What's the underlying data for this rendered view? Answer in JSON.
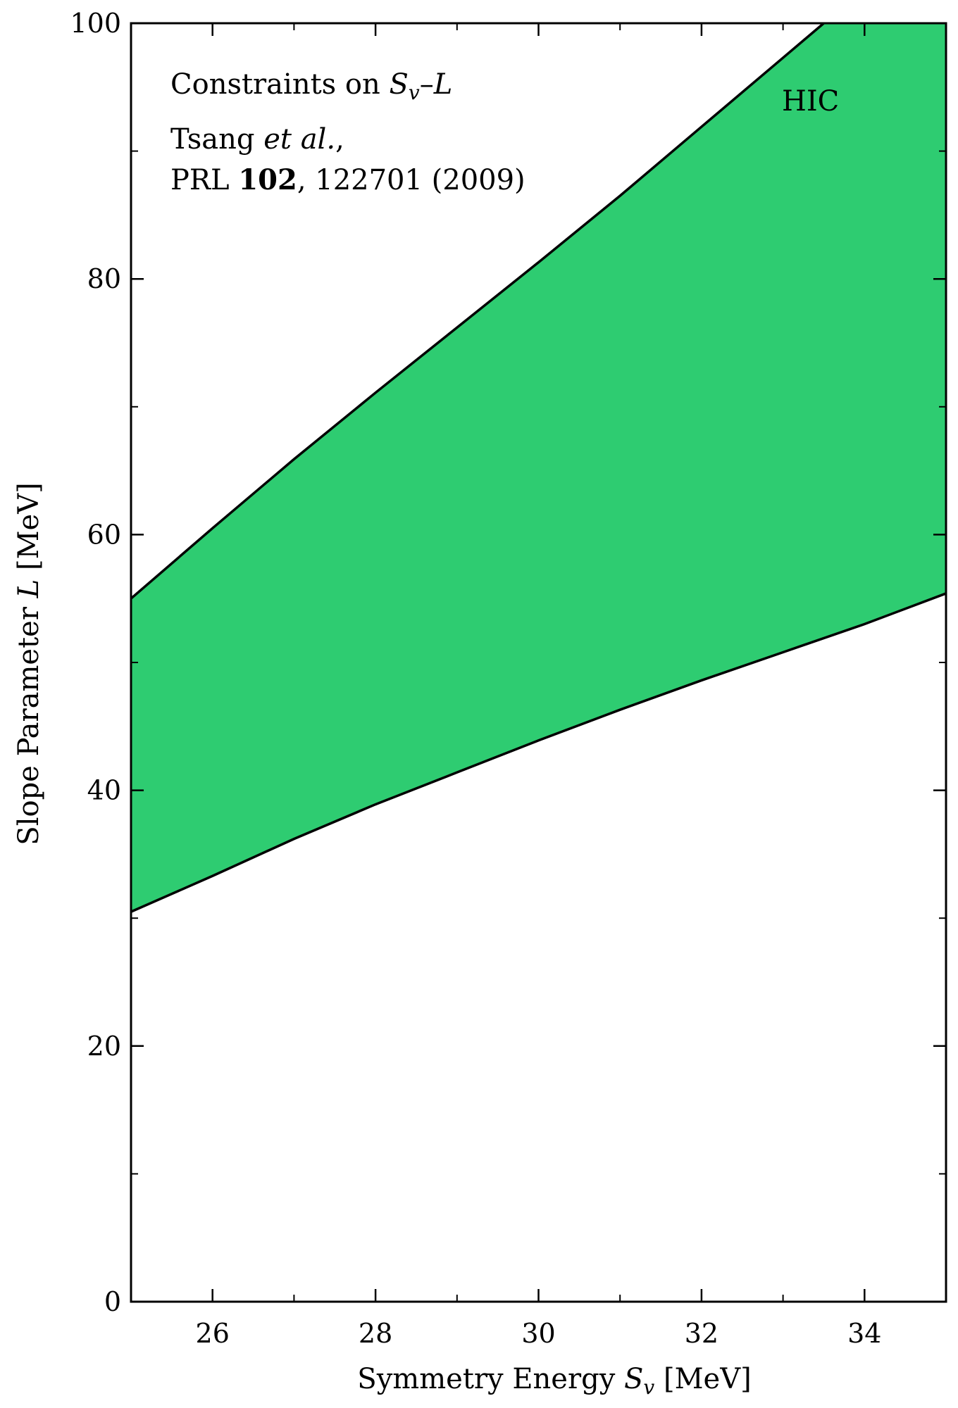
{
  "chart_data": {
    "type": "area",
    "xlabel": {
      "prefix": "Symmetry Energy ",
      "symbol": "S",
      "sub": "v",
      "suffix": " [MeV]"
    },
    "ylabel": {
      "prefix": "Slope Parameter ",
      "symbol": "L",
      "suffix": " [MeV]"
    },
    "xlim": [
      25,
      35
    ],
    "ylim": [
      0,
      100
    ],
    "x_major_ticks": [
      26,
      28,
      30,
      32,
      34
    ],
    "x_minor_ticks": [
      25,
      27,
      29,
      31,
      33,
      35
    ],
    "y_major_ticks": [
      0,
      20,
      40,
      60,
      80,
      100
    ],
    "y_minor_ticks": [
      10,
      30,
      50,
      70,
      90
    ],
    "grid": false,
    "fill_color": "#2ecc71",
    "edge_color": "#000000",
    "series": [
      {
        "name": "HIC",
        "upper": {
          "x": [
            25,
            26,
            27,
            28,
            29,
            30,
            31,
            32,
            33,
            33.5
          ],
          "y": [
            55,
            60.5,
            65.9,
            71.1,
            76.2,
            81.3,
            86.5,
            91.9,
            97.3,
            100
          ]
        },
        "lower": {
          "x": [
            25,
            26,
            27,
            28,
            29,
            30,
            31,
            32,
            33,
            34,
            35
          ],
          "y": [
            30.5,
            33.3,
            36.2,
            38.9,
            41.4,
            43.9,
            46.3,
            48.6,
            50.8,
            53.0,
            55.4
          ]
        }
      }
    ],
    "annotations": {
      "title_prefix": "Constraints on ",
      "title_S": "S",
      "title_sub": "v",
      "title_dash": "–",
      "title_L": "L",
      "ref_author": "Tsang ",
      "ref_etal": "et al.",
      "ref_comma": ",",
      "ref_journal": "PRL ",
      "ref_volume": "102",
      "ref_rest": ", 122701 (2009)",
      "band_label": "HIC"
    }
  }
}
